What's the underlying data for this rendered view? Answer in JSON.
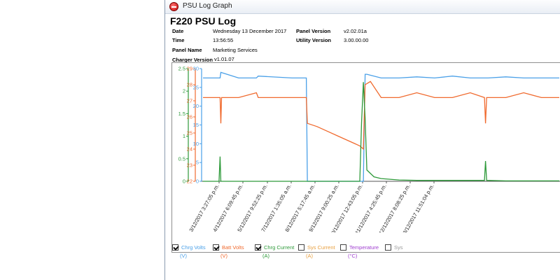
{
  "window": {
    "title": "PSU Log Graph"
  },
  "header": {
    "title": "F220 PSU Log",
    "fields": {
      "date": {
        "label": "Date",
        "value": "Wednesday 13 December 2017"
      },
      "time": {
        "label": "Time",
        "value": "13:56:55"
      },
      "panel_name": {
        "label": "Panel Name",
        "value": "Marketing Services"
      },
      "charger_version": {
        "label": "Charger Version",
        "value": "v1.01.07"
      },
      "panel_version": {
        "label": "Panel Version",
        "value": "v2.02.01a"
      },
      "utility_version": {
        "label": "Utility Version",
        "value": "3.00.00.00"
      }
    }
  },
  "colors": {
    "chrg_volts": "#4aa0e8",
    "batt_volts": "#f06a2e",
    "chrg_current": "#2e9a3a",
    "sys_current": "#e8a040",
    "temperature": "#a040d0",
    "sys_other": "#9a9a9a"
  },
  "legend": [
    {
      "label": "Chrg Volts",
      "unit": "(V)",
      "checked": true,
      "color": "#4aa0e8"
    },
    {
      "label": "Batt Volts",
      "unit": "(V)",
      "checked": true,
      "color": "#f06a2e"
    },
    {
      "label": "Chrg Current",
      "unit": "(A)",
      "checked": true,
      "color": "#2e9a3a"
    },
    {
      "label": "Sys Current",
      "unit": "(A)",
      "checked": false,
      "color": "#e8a040"
    },
    {
      "label": "Temperature",
      "unit": "(°C)",
      "checked": false,
      "color": "#a040d0"
    },
    {
      "label": "Sys",
      "unit": "",
      "checked": false,
      "color": "#9a9a9a"
    }
  ],
  "chart_data": {
    "type": "line",
    "x": [
      "3/12/2017 3:27:05 p.m.",
      "4/12/2017 6:09:45 p.m.",
      "5/12/2017 9:52:25 p.m.",
      "7/12/2017 1:35:05 a.m.",
      "8/12/2017 5:17:45 a.m.",
      "9/12/2017 9:00:25 a.m.",
      "10/12/2017 12:43:05 p.m.",
      "11/12/2017 4:25:45 p.m.",
      "12/12/2017 8:08:25 p.m.",
      "13/12/2017 11:51:04 p.m."
    ],
    "axes": [
      {
        "series": "Chrg Current",
        "ylim": [
          0,
          2.5
        ],
        "ticks": [
          "0",
          "0.5",
          "1",
          "1.5",
          "2",
          "2.5"
        ]
      },
      {
        "series": "Batt Volts",
        "ylim": [
          22,
          29
        ],
        "ticks": [
          "22",
          "23",
          "24",
          "25",
          "26",
          "27",
          "28",
          "29"
        ]
      },
      {
        "series": "Chrg Volts",
        "ylim": [
          0,
          30
        ],
        "ticks": [
          "0",
          "5",
          "10",
          "15",
          "20",
          "25",
          "30"
        ]
      }
    ],
    "series": [
      {
        "name": "Chrg Volts",
        "x": [
          0,
          0.3,
          0.48,
          0.5,
          1.0,
          1.5,
          1.55,
          2.5,
          2.9,
          2.93,
          3.0,
          3.2,
          3.8,
          4.2,
          4.5,
          4.55,
          4.6,
          5.0,
          5.5,
          6.0,
          6.5,
          7.0,
          7.5,
          8.0,
          8.5,
          9.0,
          9.5,
          10.0
        ],
        "values": [
          27.5,
          27.5,
          27.5,
          29.0,
          27.5,
          27.5,
          28.0,
          27.5,
          27.5,
          0,
          0,
          0,
          0,
          0,
          0,
          28.5,
          28.5,
          27.5,
          27.5,
          27.8,
          27.5,
          28.0,
          27.5,
          27.5,
          27.8,
          27.5,
          27.5,
          27.5
        ]
      },
      {
        "name": "Batt Volts",
        "x": [
          0,
          0.3,
          0.48,
          0.5,
          0.52,
          1.0,
          1.5,
          1.55,
          2.5,
          2.9,
          2.93,
          3.2,
          3.5,
          3.8,
          4.1,
          4.4,
          4.5,
          4.55,
          4.7,
          5.0,
          5.5,
          6.0,
          6.5,
          7.0,
          7.5,
          7.9,
          7.93,
          7.96,
          8.5,
          9.0,
          9.5,
          10.0
        ],
        "values": [
          27.2,
          27.2,
          27.2,
          25.6,
          27.2,
          27.2,
          27.5,
          27.2,
          27.2,
          27.2,
          25.6,
          25.4,
          25.1,
          24.8,
          24.5,
          24.2,
          24.0,
          28.0,
          28.2,
          27.2,
          27.2,
          27.5,
          27.2,
          27.2,
          27.5,
          27.2,
          25.6,
          27.2,
          27.2,
          27.5,
          27.2,
          27.2
        ]
      },
      {
        "name": "Chrg Current",
        "x": [
          0,
          0.45,
          0.48,
          0.5,
          0.52,
          2.9,
          3.0,
          4.4,
          4.45,
          4.5,
          4.55,
          4.6,
          4.8,
          5.0,
          5.5,
          6.0,
          7.0,
          7.9,
          7.93,
          7.96,
          8.5,
          9.0,
          10.0
        ],
        "values": [
          0.0,
          0.0,
          0.55,
          0.0,
          0.0,
          0.0,
          0.0,
          0.0,
          1.3,
          2.2,
          1.4,
          0.25,
          0.1,
          0.06,
          0.03,
          0.02,
          0.02,
          0.02,
          0.45,
          0.02,
          0.01,
          0.01,
          0.01
        ]
      }
    ]
  }
}
